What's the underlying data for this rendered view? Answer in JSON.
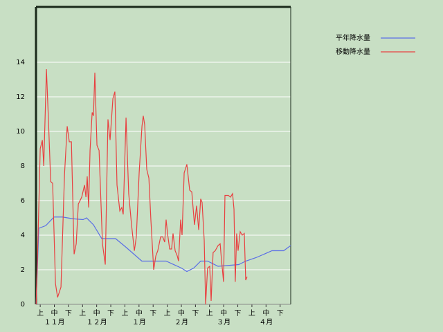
{
  "chart_data": {
    "type": "line",
    "xlim": [
      -0.3,
      17.75
    ],
    "ylim": [
      0,
      17.2
    ],
    "yticks": [
      0,
      2,
      4,
      6,
      8,
      10,
      12,
      14
    ],
    "xticks": [
      {
        "value": 0,
        "label": "上"
      },
      {
        "value": 1,
        "label": "中"
      },
      {
        "value": 2,
        "label": "下"
      },
      {
        "value": 3,
        "label": "上"
      },
      {
        "value": 4,
        "label": "中"
      },
      {
        "value": 5,
        "label": "下"
      },
      {
        "value": 6,
        "label": "上"
      },
      {
        "value": 7,
        "label": "中"
      },
      {
        "value": 8,
        "label": "下"
      },
      {
        "value": 9,
        "label": "上"
      },
      {
        "value": 10,
        "label": "中"
      },
      {
        "value": 11,
        "label": "下"
      },
      {
        "value": 12,
        "label": "上"
      },
      {
        "value": 13,
        "label": "中"
      },
      {
        "value": 14,
        "label": "下"
      },
      {
        "value": 15,
        "label": "上"
      },
      {
        "value": 16,
        "label": "中"
      },
      {
        "value": 17,
        "label": "下"
      }
    ],
    "x_groups": [
      {
        "value": 1,
        "label": "１１月"
      },
      {
        "value": 4,
        "label": "１２月"
      },
      {
        "value": 7,
        "label": "１月"
      },
      {
        "value": 10,
        "label": "２月"
      },
      {
        "value": 13,
        "label": "３月"
      },
      {
        "value": 16,
        "label": "４月"
      }
    ],
    "grid": true,
    "legend": "top-right",
    "series": [
      {
        "name": "平年降水量",
        "color": "#5a6ee6",
        "x": [
          -0.29,
          -0.1,
          0.39,
          0.98,
          1.57,
          2.3,
          3.04,
          3.28,
          3.77,
          4.36,
          5.34,
          6.08,
          7.2,
          8.92,
          10.0,
          10.39,
          10.88,
          11.37,
          11.86,
          12.6,
          14.07,
          14.56,
          15.29,
          16.42,
          17.25,
          17.75
        ],
        "values": [
          0,
          4.4,
          4.55,
          5.05,
          5.05,
          4.95,
          4.9,
          5.0,
          4.6,
          3.8,
          3.8,
          3.3,
          2.5,
          2.5,
          2.1,
          1.9,
          2.1,
          2.5,
          2.5,
          2.2,
          2.3,
          2.5,
          2.7,
          3.1,
          3.1,
          3.4
        ]
      },
      {
        "name": "移動降水量",
        "color": "#e84040",
        "x": [
          -0.29,
          -0.15,
          0,
          0.15,
          0.25,
          0.44,
          0.59,
          0.74,
          0.88,
          1.08,
          1.23,
          1.47,
          1.72,
          1.91,
          2.06,
          2.21,
          2.4,
          2.55,
          2.7,
          2.94,
          3.14,
          3.24,
          3.33,
          3.43,
          3.53,
          3.68,
          3.77,
          3.87,
          4.02,
          4.17,
          4.41,
          4.61,
          4.8,
          4.95,
          5.15,
          5.29,
          5.44,
          5.64,
          5.78,
          5.88,
          6.08,
          6.27,
          6.47,
          6.67,
          6.81,
          7.01,
          7.21,
          7.3,
          7.4,
          7.55,
          7.7,
          7.84,
          8.04,
          8.19,
          8.33,
          8.53,
          8.68,
          8.82,
          8.92,
          9.02,
          9.17,
          9.31,
          9.41,
          9.56,
          9.71,
          9.8,
          9.95,
          10.05,
          10.2,
          10.39,
          10.59,
          10.74,
          10.93,
          11.08,
          11.23,
          11.37,
          11.47,
          11.62,
          11.72,
          11.86,
          12.01,
          12.11,
          12.25,
          12.4,
          12.6,
          12.75,
          12.84,
          12.99,
          13.09,
          13.33,
          13.48,
          13.63,
          13.73,
          13.82,
          13.92,
          14.02,
          14.17,
          14.31,
          14.46,
          14.56,
          14.66
        ],
        "values": [
          0,
          4,
          9,
          9.5,
          8,
          13.6,
          10.5,
          7.1,
          7,
          1.2,
          0.4,
          1,
          7.5,
          10.3,
          9.4,
          9.4,
          2.9,
          3.5,
          5.8,
          6.2,
          6.9,
          6.2,
          7.4,
          5.6,
          8.9,
          11.1,
          10.9,
          13.4,
          9.2,
          8.9,
          3.5,
          2.3,
          10.7,
          9.5,
          11.9,
          12.3,
          6.9,
          5.4,
          5.6,
          5.2,
          10.8,
          6.4,
          4.6,
          3.1,
          3.9,
          7.6,
          10.3,
          10.9,
          10.4,
          7.8,
          7.3,
          4.9,
          2,
          2.8,
          3.1,
          3.9,
          3.9,
          3.6,
          4.9,
          4.1,
          3.2,
          3.2,
          4.1,
          3.1,
          2.8,
          2.5,
          4.9,
          4.0,
          7.6,
          8.1,
          6.6,
          6.5,
          4.6,
          5.7,
          4.3,
          6.1,
          5.9,
          3.7,
          0,
          2.1,
          2.2,
          0.2,
          3,
          3.1,
          3.4,
          3.5,
          2.6,
          1.3,
          6.3,
          6.3,
          6.2,
          6.4,
          5.5,
          1.3,
          4.1,
          3.1,
          4.2,
          4,
          4.1,
          1.4,
          1.6
        ]
      }
    ]
  }
}
